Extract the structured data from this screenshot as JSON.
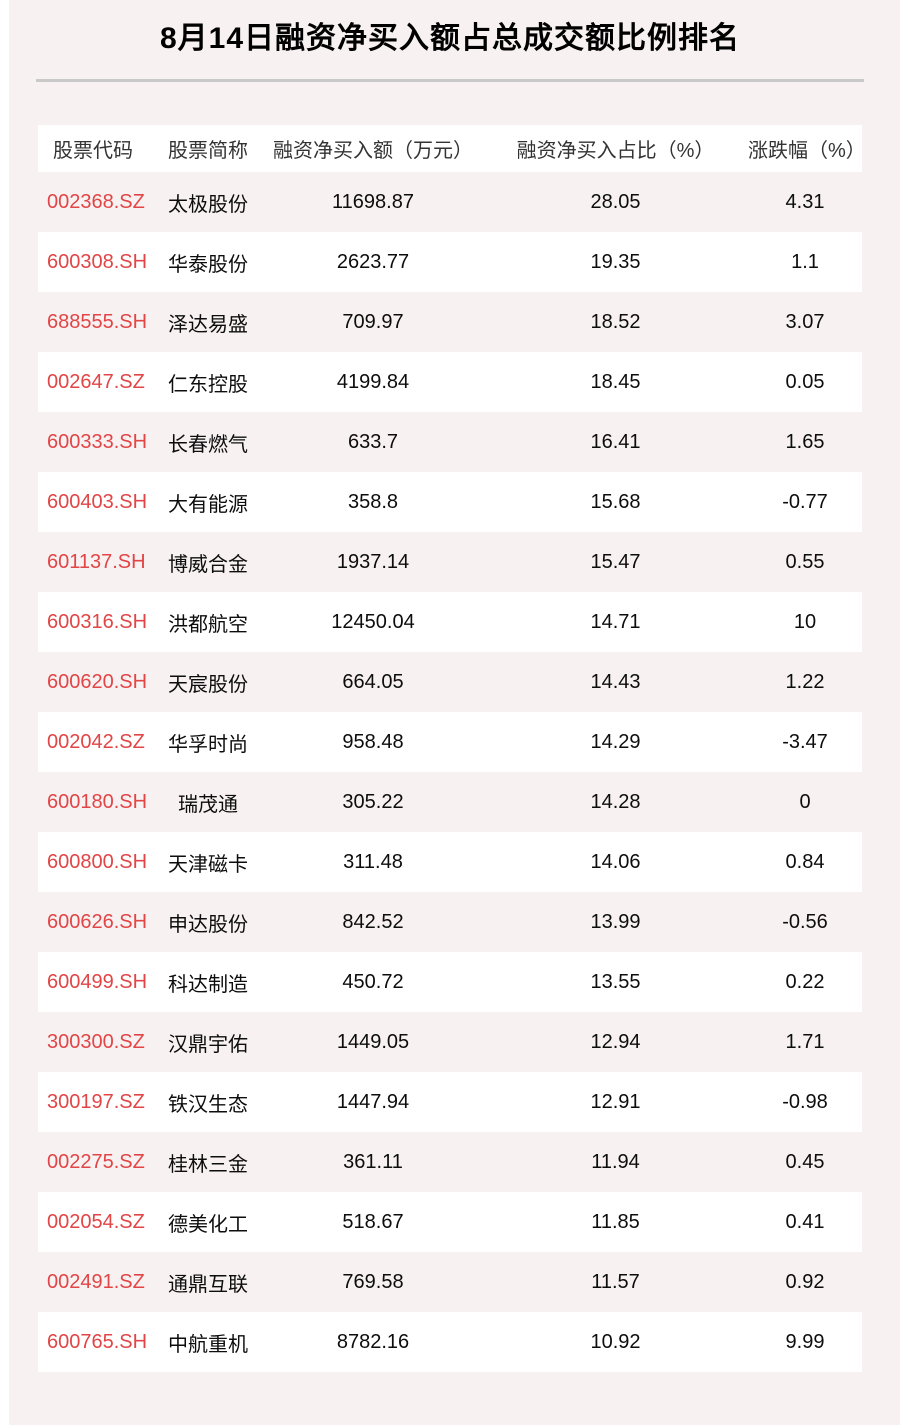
{
  "chart_data": {
    "type": "table",
    "title": "8月14日融资净买入额占总成交额比例排名",
    "columns": [
      "股票代码",
      "股票简称",
      "融资净买入额（万元）",
      "融资净买入占比（%）",
      "涨跌幅（%）"
    ],
    "rows": [
      [
        "002368.SZ",
        "太极股份",
        "11698.87",
        "28.05",
        "4.31"
      ],
      [
        "600308.SH",
        "华泰股份",
        "2623.77",
        "19.35",
        "1.1"
      ],
      [
        "688555.SH",
        "泽达易盛",
        "709.97",
        "18.52",
        "3.07"
      ],
      [
        "002647.SZ",
        "仁东控股",
        "4199.84",
        "18.45",
        "0.05"
      ],
      [
        "600333.SH",
        "长春燃气",
        "633.7",
        "16.41",
        "1.65"
      ],
      [
        "600403.SH",
        "大有能源",
        "358.8",
        "15.68",
        "-0.77"
      ],
      [
        "601137.SH",
        "博威合金",
        "1937.14",
        "15.47",
        "0.55"
      ],
      [
        "600316.SH",
        "洪都航空",
        "12450.04",
        "14.71",
        "10"
      ],
      [
        "600620.SH",
        "天宸股份",
        "664.05",
        "14.43",
        "1.22"
      ],
      [
        "002042.SZ",
        "华孚时尚",
        "958.48",
        "14.29",
        "-3.47"
      ],
      [
        "600180.SH",
        "瑞茂通",
        "305.22",
        "14.28",
        "0"
      ],
      [
        "600800.SH",
        "天津磁卡",
        "311.48",
        "14.06",
        "0.84"
      ],
      [
        "600626.SH",
        "申达股份",
        "842.52",
        "13.99",
        "-0.56"
      ],
      [
        "600499.SH",
        "科达制造",
        "450.72",
        "13.55",
        "0.22"
      ],
      [
        "300300.SZ",
        "汉鼎宇佑",
        "1449.05",
        "12.94",
        "1.71"
      ],
      [
        "300197.SZ",
        "铁汉生态",
        "1447.94",
        "12.91",
        "-0.98"
      ],
      [
        "002275.SZ",
        "桂林三金",
        "361.11",
        "11.94",
        "0.45"
      ],
      [
        "002054.SZ",
        "德美化工",
        "518.67",
        "11.85",
        "0.41"
      ],
      [
        "002491.SZ",
        "通鼎互联",
        "769.58",
        "11.57",
        "0.92"
      ],
      [
        "600765.SH",
        "中航重机",
        "8782.16",
        "10.92",
        "9.99"
      ]
    ]
  },
  "colors": {
    "page_background": "#f7f1f2",
    "row_alternate": "#ffffff",
    "stock_code_red": "#e14546",
    "divider_gray": "#c9c9c9",
    "header_text": "#333333",
    "body_text": "#0d0d0d"
  }
}
